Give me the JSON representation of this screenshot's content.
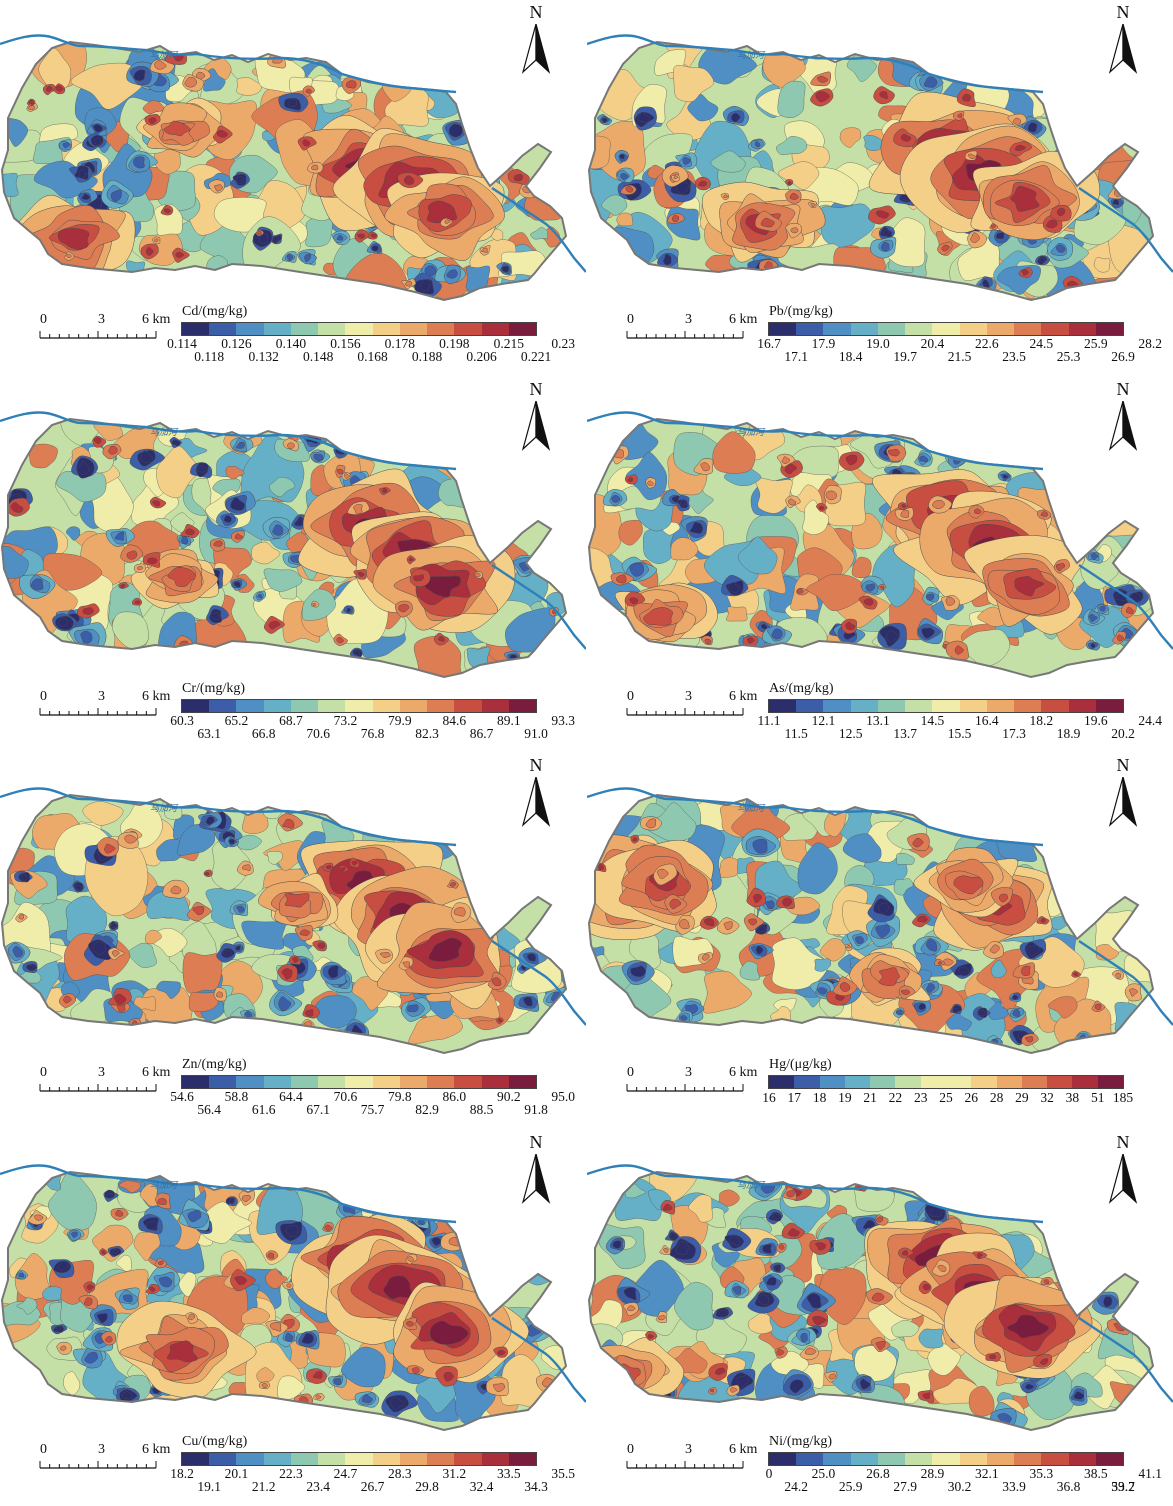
{
  "river_label": "乌加河",
  "north_label": "N",
  "scale": {
    "ticks": [
      "0",
      "3",
      "6 km"
    ]
  },
  "palette": [
    "#2c2d6b",
    "#3c5ea8",
    "#4f8fc3",
    "#66b0c7",
    "#8ec8b0",
    "#c5e0a6",
    "#f0edaa",
    "#f3cf88",
    "#eba96a",
    "#dd7d53",
    "#c94e42",
    "#a92f3c",
    "#7a1c3d"
  ],
  "panels": [
    {
      "id": "cd",
      "title": "Cd/(mg/kg)",
      "top_labels": [
        "0.114",
        "0.126",
        "0.140",
        "0.156",
        "0.178",
        "0.198",
        "0.215",
        "0.23"
      ],
      "bottom_labels": [
        "0.118",
        "0.132",
        "0.148",
        "0.168",
        "0.188",
        "0.206",
        "0.221"
      ]
    },
    {
      "id": "pb",
      "title": "Pb/(mg/kg)",
      "top_labels": [
        "16.7",
        "17.9",
        "19.0",
        "20.4",
        "22.6",
        "24.5",
        "25.9",
        "28.2"
      ],
      "bottom_labels": [
        "17.1",
        "18.4",
        "19.7",
        "21.5",
        "23.5",
        "25.3",
        "26.9"
      ]
    },
    {
      "id": "cr",
      "title": "Cr/(mg/kg)",
      "top_labels": [
        "60.3",
        "65.2",
        "68.7",
        "73.2",
        "79.9",
        "84.6",
        "89.1",
        "93.3"
      ],
      "bottom_labels": [
        "63.1",
        "66.8",
        "70.6",
        "76.8",
        "82.3",
        "86.7",
        "91.0"
      ]
    },
    {
      "id": "as",
      "title": "As/(mg/kg)",
      "top_labels": [
        "11.1",
        "12.1",
        "13.1",
        "14.5",
        "16.4",
        "18.2",
        "19.6",
        "24.4"
      ],
      "bottom_labels": [
        "11.5",
        "12.5",
        "13.7",
        "15.5",
        "17.3",
        "18.9",
        "20.2"
      ]
    },
    {
      "id": "zn",
      "title": "Zn/(mg/kg)",
      "top_labels": [
        "54.6",
        "58.8",
        "64.4",
        "70.6",
        "79.8",
        "86.0",
        "90.2",
        "95.0"
      ],
      "bottom_labels": [
        "56.4",
        "61.6",
        "67.1",
        "75.7",
        "82.9",
        "88.5",
        "91.8"
      ]
    },
    {
      "id": "hg",
      "title": "Hg/(μg/kg)",
      "single_row": true,
      "top_labels": [
        "16",
        "17",
        "18",
        "19",
        "21",
        "22",
        "23",
        "25",
        "26",
        "28",
        "29",
        "32",
        "38",
        "51",
        "185"
      ],
      "bottom_labels": []
    },
    {
      "id": "cu",
      "title": "Cu/(mg/kg)",
      "top_labels": [
        "18.2",
        "20.1",
        "22.3",
        "24.7",
        "28.3",
        "31.2",
        "33.5",
        "35.5"
      ],
      "bottom_labels": [
        "19.1",
        "21.2",
        "23.4",
        "26.7",
        "29.8",
        "32.4",
        "34.3"
      ]
    },
    {
      "id": "ni",
      "title": "Ni/(mg/kg)",
      "top_labels": [
        "0",
        "25.0",
        "26.8",
        "28.9",
        "32.1",
        "35.3",
        "38.5",
        "41.1"
      ],
      "bottom_labels": [
        "24.2",
        "25.9",
        "27.9",
        "30.2",
        "33.9",
        "36.8",
        "39.7",
        "53.2"
      ]
    }
  ]
}
